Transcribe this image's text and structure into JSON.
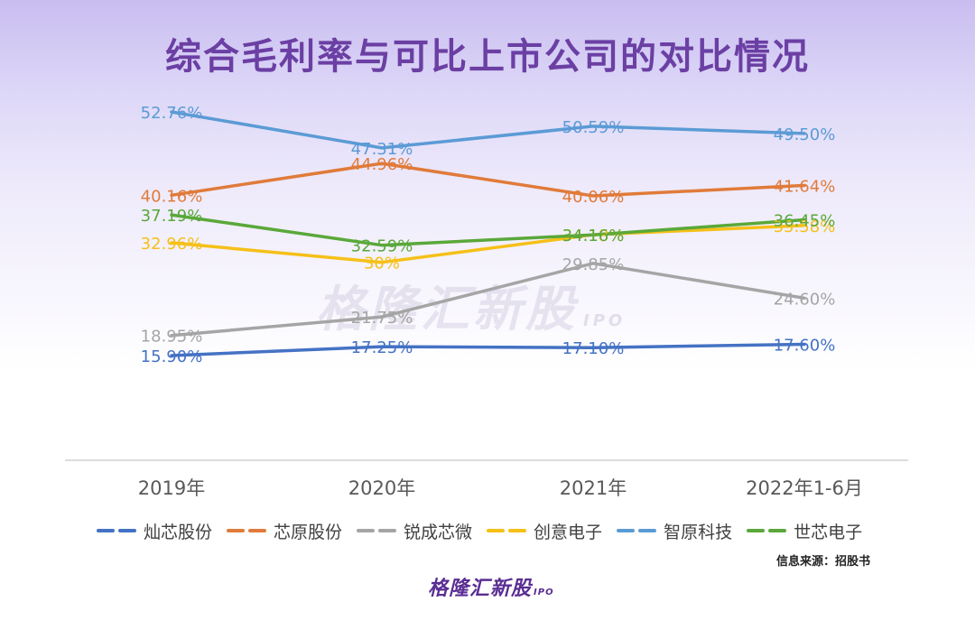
{
  "title": "综合毛利率与可比上市公司的对比情况",
  "source": "信息来源：招股书",
  "brand": "格隆汇新股",
  "brand_sub": "IPO",
  "watermark": "格隆汇新股",
  "watermark_sub": "IPO",
  "chart_data": {
    "type": "line",
    "categories": [
      "2019年",
      "2020年",
      "2021年",
      "2022年1-6月"
    ],
    "series": [
      {
        "name": "灿芯股份",
        "values": [
          15.9,
          17.25,
          17.1,
          17.6
        ],
        "labels": [
          "15.90%",
          "17.25%",
          "17.10%",
          "17.60%"
        ],
        "color": "#4472c4"
      },
      {
        "name": "芯原股份",
        "values": [
          40.16,
          44.96,
          40.06,
          41.64
        ],
        "labels": [
          "40.16%",
          "44.96%",
          "40.06%",
          "41.64%"
        ],
        "color": "#e07b3a"
      },
      {
        "name": "锐成芯微",
        "values": [
          18.95,
          21.75,
          29.85,
          24.6
        ],
        "labels": [
          "18.95%",
          "21.75%",
          "29.85%",
          "24.60%"
        ],
        "color": "#a5a5a5"
      },
      {
        "name": "创意电子",
        "values": [
          32.96,
          30,
          34.18,
          35.58
        ],
        "labels": [
          "32.96%",
          "30%",
          "34.18%",
          "35.58%"
        ],
        "color": "#f5c018"
      },
      {
        "name": "智原科技",
        "values": [
          52.76,
          47.31,
          50.59,
          49.5
        ],
        "labels": [
          "52.76%",
          "47.31%",
          "50.59%",
          "49.50%"
        ],
        "color": "#5b9bd5"
      },
      {
        "name": "世芯电子",
        "values": [
          37.19,
          32.59,
          34.16,
          36.45
        ],
        "labels": [
          "37.19%",
          "32.59%",
          "34.16%",
          "36.45%"
        ],
        "color": "#5aa83a"
      }
    ],
    "grid": false,
    "legend_position": "bottom"
  }
}
